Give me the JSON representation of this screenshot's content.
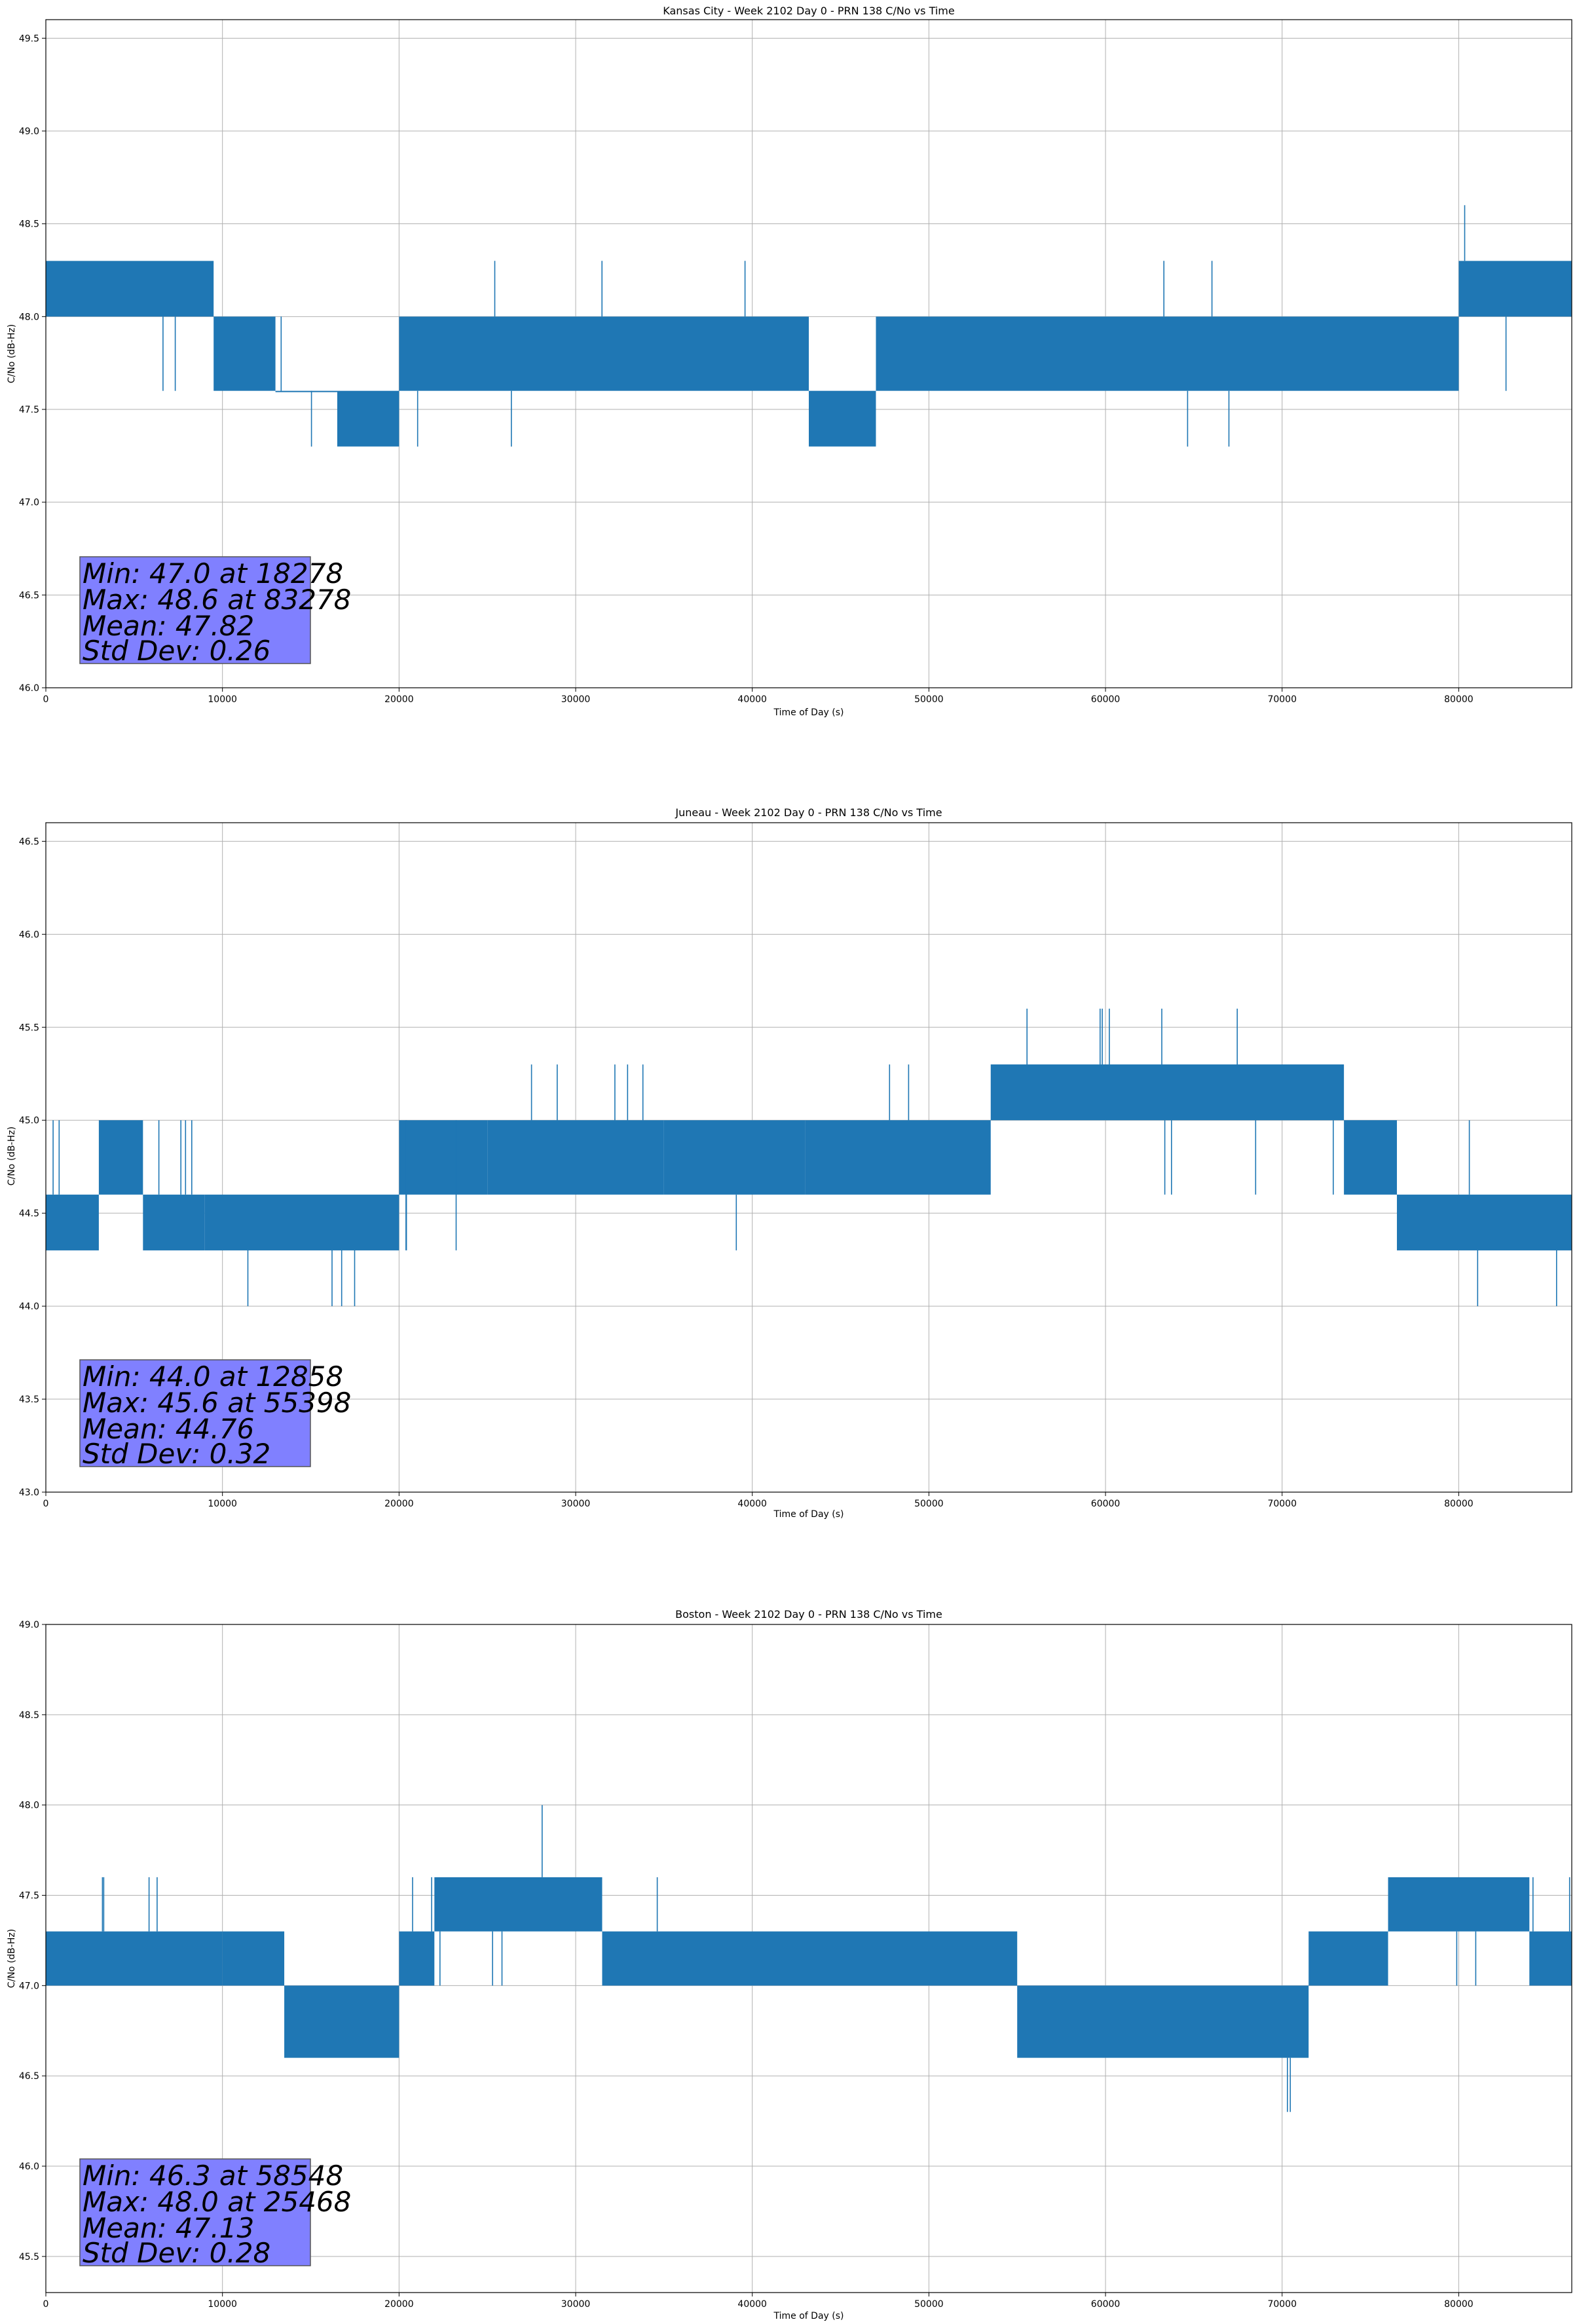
{
  "chart_data": [
    {
      "type": "line",
      "title": "Kansas City - Week 2102 Day 0 - PRN 138 C/No vs Time",
      "xlabel": "Time of Day (s)",
      "ylabel": "C/No (dB-Hz)",
      "xlim": [
        0,
        86400
      ],
      "ylim": [
        46.0,
        49.6
      ],
      "xticks": [
        0,
        10000,
        20000,
        30000,
        40000,
        50000,
        60000,
        70000,
        80000
      ],
      "xtick_labels": [
        "0",
        "10000",
        "20000",
        "30000",
        "40000",
        "50000",
        "60000",
        "70000",
        "80000"
      ],
      "yticks": [
        46.0,
        46.5,
        47.0,
        47.5,
        48.0,
        48.5,
        49.0,
        49.5
      ],
      "ytick_labels": [
        "46.0",
        "46.5",
        "47.0",
        "47.5",
        "48.0",
        "48.5",
        "49.0",
        "49.5"
      ],
      "grid": true,
      "series_color": "#1f77b4",
      "quantization": 0.3,
      "seed": 11,
      "band_segments": [
        {
          "start": 0,
          "end": 9500,
          "low": 48.0,
          "high": 48.3,
          "up_spike": null,
          "up_rate": 0,
          "down_spike": 47.6,
          "down_rate": 0.008
        },
        {
          "start": 9500,
          "end": 13000,
          "low": 47.6,
          "high": 48.0,
          "up_spike": 48.3,
          "up_rate": 0.008,
          "down_spike": 47.3,
          "down_rate": 0.01
        },
        {
          "start": 13000,
          "end": 16500,
          "low": 47.6,
          "high": 47.6,
          "up_spike": 48.0,
          "up_rate": 0.02,
          "down_spike": 47.3,
          "down_rate": 0.06
        },
        {
          "start": 16500,
          "end": 20000,
          "low": 47.3,
          "high": 47.6,
          "up_spike": 48.0,
          "up_rate": 0.004,
          "down_spike": 47.0,
          "down_rate": 0.01
        },
        {
          "start": 20000,
          "end": 43200,
          "low": 47.6,
          "high": 48.0,
          "up_spike": 48.3,
          "up_rate": 0.012,
          "down_spike": 47.3,
          "down_rate": 0.001
        },
        {
          "start": 43200,
          "end": 47000,
          "low": 47.3,
          "high": 47.6,
          "up_spike": 48.0,
          "up_rate": 0.006,
          "down_spike": 47.0,
          "down_rate": 0.002
        },
        {
          "start": 47000,
          "end": 80000,
          "low": 47.6,
          "high": 48.0,
          "up_spike": 48.3,
          "up_rate": 0.004,
          "down_spike": 47.3,
          "down_rate": 0.008
        },
        {
          "start": 80000,
          "end": 86400,
          "low": 48.0,
          "high": 48.3,
          "up_spike": 48.6,
          "up_rate": 0.004,
          "down_spike": 47.6,
          "down_rate": 0.008
        }
      ],
      "stats": {
        "min_line": "Min: 47.0 at 18278",
        "max_line": "Max: 48.6 at 83278",
        "mean_line": "Mean: 47.82",
        "std_line": "Std Dev: 0.26",
        "box_color": "#8080ff"
      }
    },
    {
      "type": "line",
      "title": "Juneau - Week 2102 Day 0 - PRN 138 C/No vs Time",
      "xlabel": "Time of Day (s)",
      "ylabel": "C/No (dB-Hz)",
      "xlim": [
        0,
        86400
      ],
      "ylim": [
        43.0,
        46.6
      ],
      "xticks": [
        0,
        10000,
        20000,
        30000,
        40000,
        50000,
        60000,
        70000,
        80000
      ],
      "xtick_labels": [
        "0",
        "10000",
        "20000",
        "30000",
        "40000",
        "50000",
        "60000",
        "70000",
        "80000"
      ],
      "yticks": [
        43.0,
        43.5,
        44.0,
        44.5,
        45.0,
        45.5,
        46.0,
        46.5
      ],
      "ytick_labels": [
        "43.0",
        "43.5",
        "44.0",
        "44.5",
        "45.0",
        "45.5",
        "46.0",
        "46.5"
      ],
      "grid": true,
      "series_color": "#1f77b4",
      "quantization": 0.3,
      "seed": 23,
      "band_segments": [
        {
          "start": 0,
          "end": 3000,
          "low": 44.3,
          "high": 44.6,
          "up_spike": 45.0,
          "up_rate": 0.06,
          "down_spike": null,
          "down_rate": 0
        },
        {
          "start": 3000,
          "end": 5500,
          "low": 44.6,
          "high": 45.0,
          "up_spike": null,
          "up_rate": 0,
          "down_spike": 44.3,
          "down_rate": 0.02
        },
        {
          "start": 5500,
          "end": 9000,
          "low": 44.3,
          "high": 44.6,
          "up_spike": 45.0,
          "up_rate": 0.05,
          "down_spike": null,
          "down_rate": 0
        },
        {
          "start": 9000,
          "end": 20000,
          "low": 44.3,
          "high": 44.6,
          "up_spike": null,
          "up_rate": 0,
          "down_spike": 44.0,
          "down_rate": 0.008
        },
        {
          "start": 20000,
          "end": 25000,
          "low": 44.6,
          "high": 45.0,
          "up_spike": 44.3,
          "up_rate": 0.03,
          "down_spike": 44.0,
          "down_rate": 0.002
        },
        {
          "start": 25000,
          "end": 35000,
          "low": 44.6,
          "high": 45.0,
          "up_spike": 45.3,
          "up_rate": 0.015,
          "down_spike": 44.3,
          "down_rate": 0.002
        },
        {
          "start": 35000,
          "end": 43000,
          "low": 44.6,
          "high": 45.0,
          "up_spike": null,
          "up_rate": 0,
          "down_spike": 44.3,
          "down_rate": 0.008
        },
        {
          "start": 43000,
          "end": 53500,
          "low": 44.6,
          "high": 45.0,
          "up_spike": 45.3,
          "up_rate": 0.004,
          "down_spike": 44.3,
          "down_rate": 0.004
        },
        {
          "start": 53500,
          "end": 73500,
          "low": 45.0,
          "high": 45.3,
          "up_spike": 45.6,
          "up_rate": 0.008,
          "down_spike": 44.6,
          "down_rate": 0.008
        },
        {
          "start": 73500,
          "end": 76500,
          "low": 44.6,
          "high": 45.0,
          "up_spike": 45.3,
          "up_rate": 0.004,
          "down_spike": null,
          "down_rate": 0
        },
        {
          "start": 76500,
          "end": 86400,
          "low": 44.3,
          "high": 44.6,
          "up_spike": 45.0,
          "up_rate": 0.004,
          "down_spike": 44.0,
          "down_rate": 0.02
        }
      ],
      "stats": {
        "min_line": "Min: 44.0 at 12858",
        "max_line": "Max: 45.6 at 55398",
        "mean_line": "Mean: 44.76",
        "std_line": "Std Dev: 0.32",
        "box_color": "#8080ff"
      }
    },
    {
      "type": "line",
      "title": "Boston - Week 2102 Day 0 - PRN 138 C/No vs Time",
      "xlabel": "Time of Day (s)",
      "ylabel": "C/No (dB-Hz)",
      "xlim": [
        0,
        86400
      ],
      "ylim": [
        45.3,
        49.0
      ],
      "xticks": [
        0,
        10000,
        20000,
        30000,
        40000,
        50000,
        60000,
        70000,
        80000
      ],
      "xtick_labels": [
        "0",
        "10000",
        "20000",
        "30000",
        "40000",
        "50000",
        "60000",
        "70000",
        "80000"
      ],
      "yticks": [
        45.5,
        46.0,
        46.5,
        47.0,
        47.5,
        48.0,
        48.5,
        49.0
      ],
      "ytick_labels": [
        "45.5",
        "46.0",
        "46.5",
        "47.0",
        "47.5",
        "48.0",
        "48.5",
        "49.0"
      ],
      "grid": true,
      "series_color": "#1f77b4",
      "quantization": 0.3,
      "seed": 37,
      "band_segments": [
        {
          "start": 0,
          "end": 10000,
          "low": 47.0,
          "high": 47.3,
          "up_spike": 47.6,
          "up_rate": 0.03,
          "down_spike": null,
          "down_rate": 0
        },
        {
          "start": 10000,
          "end": 13500,
          "low": 47.0,
          "high": 47.3,
          "up_spike": null,
          "up_rate": 0,
          "down_spike": 46.6,
          "down_rate": 0.01
        },
        {
          "start": 13500,
          "end": 20000,
          "low": 46.6,
          "high": 47.0,
          "up_spike": 47.3,
          "up_rate": 0.004,
          "down_spike": null,
          "down_rate": 0
        },
        {
          "start": 20000,
          "end": 22000,
          "low": 47.0,
          "high": 47.3,
          "up_spike": 47.6,
          "up_rate": 0.02,
          "down_spike": null,
          "down_rate": 0
        },
        {
          "start": 22000,
          "end": 31500,
          "low": 47.3,
          "high": 47.6,
          "up_spike": 48.0,
          "up_rate": 0.006,
          "down_spike": 47.0,
          "down_rate": 0.02
        },
        {
          "start": 31500,
          "end": 55000,
          "low": 47.0,
          "high": 47.3,
          "up_spike": 47.6,
          "up_rate": 0.004,
          "down_spike": 46.6,
          "down_rate": 0.003
        },
        {
          "start": 55000,
          "end": 71500,
          "low": 46.6,
          "high": 47.0,
          "up_spike": 47.3,
          "up_rate": 0.004,
          "down_spike": 46.3,
          "down_rate": 0.012
        },
        {
          "start": 71500,
          "end": 76000,
          "low": 47.0,
          "high": 47.3,
          "up_spike": 47.6,
          "up_rate": 0.02,
          "down_spike": null,
          "down_rate": 0
        },
        {
          "start": 76000,
          "end": 84000,
          "low": 47.3,
          "high": 47.6,
          "up_spike": null,
          "up_rate": 0,
          "down_spike": 47.0,
          "down_rate": 0.02
        },
        {
          "start": 84000,
          "end": 86400,
          "low": 47.0,
          "high": 47.3,
          "up_spike": 47.6,
          "up_rate": 0.01,
          "down_spike": null,
          "down_rate": 0
        }
      ],
      "stats": {
        "min_line": "Min: 46.3 at 58548",
        "max_line": "Max: 48.0 at 25468",
        "mean_line": "Mean: 47.13",
        "std_line": "Std Dev: 0.28",
        "box_color": "#8080ff"
      }
    }
  ]
}
